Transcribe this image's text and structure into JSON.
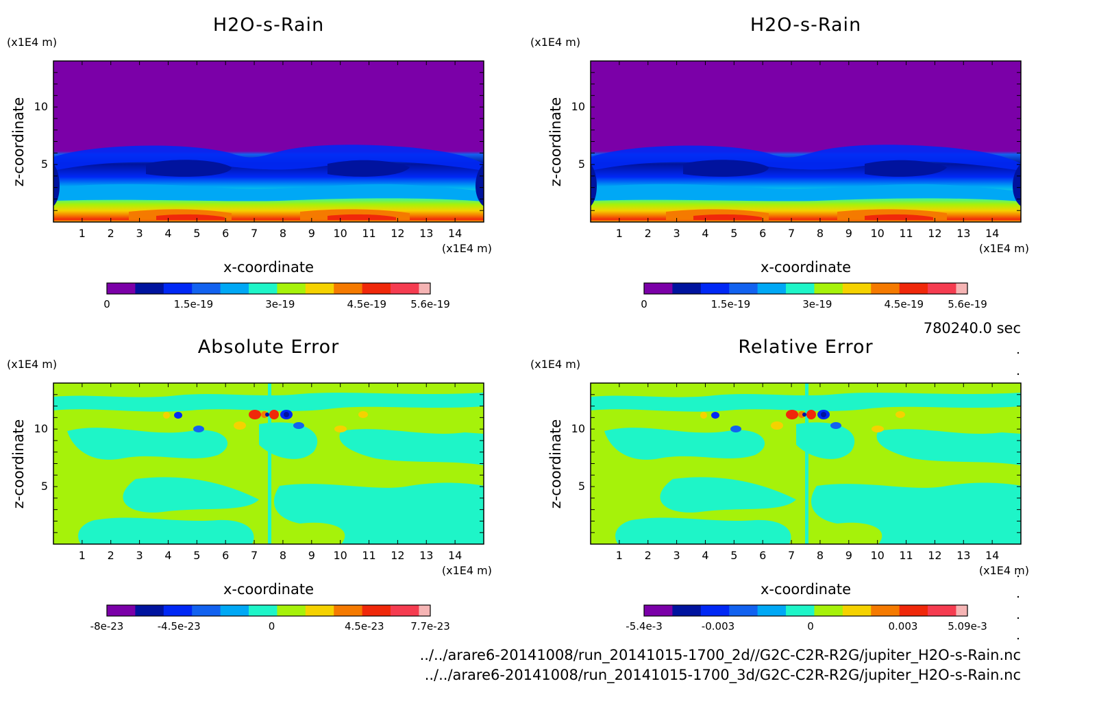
{
  "time_label": "780240.0 sec",
  "files": [
    "../../arare6-20141008/run_20141015-1700_2d//G2C-C2R-R2G/jupiter_H2O-s-Rain.nc",
    "../../arare6-20141008/run_20141015-1700_3d/G2C-C2R-R2G/jupiter_H2O-s-Rain.nc"
  ],
  "palette": [
    "#7b00a8",
    "#00139e",
    "#0028f5",
    "#1262f0",
    "#00a8f5",
    "#1ef5c8",
    "#a6f20a",
    "#f5d200",
    "#f57a00",
    "#f0280a",
    "#f53c50",
    "#f5b4b4"
  ],
  "chart_data": [
    {
      "type": "heatmap",
      "title": "H2O-s-Rain",
      "xlabel": "x-coordinate",
      "ylabel": "z-coordinate",
      "x_unit": "(x1E4 m)",
      "y_unit": "(x1E4 m)",
      "xticks": [
        1,
        2,
        3,
        4,
        5,
        6,
        7,
        8,
        9,
        10,
        11,
        12,
        13,
        14
      ],
      "yticks": [
        5,
        10
      ],
      "xlim": [
        0,
        15
      ],
      "ylim": [
        0,
        14
      ],
      "colorbar": {
        "min": 0,
        "max": 5.6e-19,
        "ticks": [
          {
            "v": 0,
            "t": "0"
          },
          {
            "v": 1.5e-19,
            "t": "1.5e-19"
          },
          {
            "v": 3e-19,
            "t": "3e-19"
          },
          {
            "v": 4.5e-19,
            "t": "4.5e-19"
          },
          {
            "v": 5.6e-19,
            "t": "5.6e-19"
          }
        ]
      }
    },
    {
      "type": "heatmap",
      "title": "H2O-s-Rain",
      "xlabel": "x-coordinate",
      "ylabel": "z-coordinate",
      "x_unit": "(x1E4 m)",
      "y_unit": "(x1E4 m)",
      "xticks": [
        1,
        2,
        3,
        4,
        5,
        6,
        7,
        8,
        9,
        10,
        11,
        12,
        13,
        14
      ],
      "yticks": [
        5,
        10
      ],
      "xlim": [
        0,
        15
      ],
      "ylim": [
        0,
        14
      ],
      "colorbar": {
        "min": 0,
        "max": 5.6e-19,
        "ticks": [
          {
            "v": 0,
            "t": "0"
          },
          {
            "v": 1.5e-19,
            "t": "1.5e-19"
          },
          {
            "v": 3e-19,
            "t": "3e-19"
          },
          {
            "v": 4.5e-19,
            "t": "4.5e-19"
          },
          {
            "v": 5.6e-19,
            "t": "5.6e-19"
          }
        ]
      }
    },
    {
      "type": "heatmap",
      "title": "Absolute Error",
      "xlabel": "x-coordinate",
      "ylabel": "z-coordinate",
      "x_unit": "(x1E4 m)",
      "y_unit": "(x1E4 m)",
      "xticks": [
        1,
        2,
        3,
        4,
        5,
        6,
        7,
        8,
        9,
        10,
        11,
        12,
        13,
        14
      ],
      "yticks": [
        5,
        10
      ],
      "xlim": [
        0,
        15
      ],
      "ylim": [
        0,
        14
      ],
      "colorbar": {
        "min": -8e-23,
        "max": 7.7e-23,
        "ticks": [
          {
            "v": -8e-23,
            "t": "-8e-23"
          },
          {
            "v": -4.5e-23,
            "t": "-4.5e-23"
          },
          {
            "v": 0,
            "t": "0"
          },
          {
            "v": 4.5e-23,
            "t": "4.5e-23"
          },
          {
            "v": 7.7e-23,
            "t": "7.7e-23"
          }
        ]
      }
    },
    {
      "type": "heatmap",
      "title": "Relative Error",
      "xlabel": "x-coordinate",
      "ylabel": "z-coordinate",
      "x_unit": "(x1E4 m)",
      "y_unit": "(x1E4 m)",
      "xticks": [
        1,
        2,
        3,
        4,
        5,
        6,
        7,
        8,
        9,
        10,
        11,
        12,
        13,
        14
      ],
      "yticks": [
        5,
        10
      ],
      "xlim": [
        0,
        15
      ],
      "ylim": [
        0,
        14
      ],
      "colorbar": {
        "min": -0.0054,
        "max": 0.00509,
        "ticks": [
          {
            "v": -0.0054,
            "t": "-5.4e-3"
          },
          {
            "v": -0.003,
            "t": "-0.003"
          },
          {
            "v": 0,
            "t": "0"
          },
          {
            "v": 0.003,
            "t": "0.003"
          },
          {
            "v": 0.00509,
            "t": "5.09e-3"
          }
        ]
      }
    }
  ]
}
